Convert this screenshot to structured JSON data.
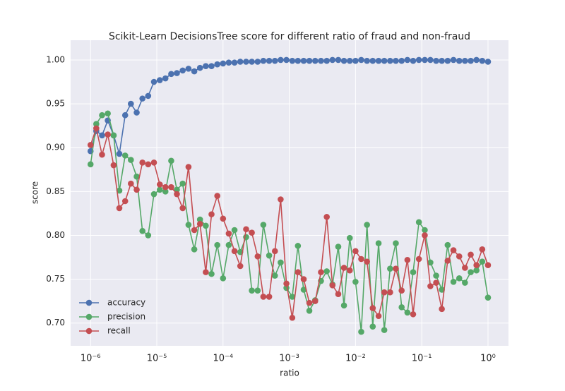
{
  "chart_data": {
    "type": "line",
    "title": "Scikit-Learn DecisionsTree score for different ratio of fraud and non-fraud",
    "x_label": "ratio",
    "y_label": "score",
    "xscale": "log",
    "grid": true,
    "legend": "lower left",
    "x": [
      1e-06,
      1.22e-06,
      1.49e-06,
      1.82e-06,
      2.23e-06,
      2.72e-06,
      3.33e-06,
      4.06e-06,
      4.97e-06,
      6.07e-06,
      7.41e-06,
      9.06e-06,
      1.11e-05,
      1.35e-05,
      1.65e-05,
      2.01e-05,
      2.46e-05,
      3.01e-05,
      3.68e-05,
      4.49e-05,
      5.49e-05,
      6.7e-05,
      8.19e-05,
      0.0001,
      0.000122,
      0.000149,
      0.000182,
      0.000223,
      0.000272,
      0.000333,
      0.000406,
      0.000497,
      0.000607,
      0.000741,
      0.000906,
      0.00111,
      0.00135,
      0.00165,
      0.00201,
      0.00246,
      0.00301,
      0.00368,
      0.00449,
      0.00549,
      0.0067,
      0.00819,
      0.01,
      0.0122,
      0.0149,
      0.0182,
      0.0223,
      0.0272,
      0.0333,
      0.0406,
      0.0497,
      0.0607,
      0.0741,
      0.0906,
      0.111,
      0.135,
      0.165,
      0.201,
      0.246,
      0.301,
      0.368,
      0.449,
      0.549,
      0.67,
      0.819,
      1
    ],
    "series": [
      {
        "name": "accuracy",
        "color": "#4c72b0",
        "values": [
          0.896,
          0.919,
          0.914,
          0.931,
          0.914,
          0.893,
          0.937,
          0.95,
          0.94,
          0.956,
          0.959,
          0.975,
          0.977,
          0.979,
          0.984,
          0.985,
          0.988,
          0.99,
          0.987,
          0.991,
          0.993,
          0.993,
          0.995,
          0.996,
          0.997,
          0.997,
          0.998,
          0.998,
          0.998,
          0.998,
          0.999,
          0.999,
          0.999,
          1.0,
          1.0,
          0.999,
          0.999,
          0.999,
          0.999,
          0.999,
          0.999,
          0.999,
          1.0,
          1.0,
          0.999,
          0.999,
          0.999,
          1.0,
          0.999,
          0.999,
          0.999,
          0.999,
          0.999,
          0.999,
          0.999,
          1.0,
          0.999,
          1.0,
          1.0,
          1.0,
          0.999,
          0.999,
          0.999,
          1.0,
          0.999,
          0.999,
          0.999,
          1.0,
          0.999,
          0.998
        ]
      },
      {
        "name": "precision",
        "color": "#55a868",
        "values": [
          0.881,
          0.927,
          0.937,
          0.939,
          0.914,
          0.851,
          0.891,
          0.886,
          0.867,
          0.805,
          0.8,
          0.847,
          0.852,
          0.85,
          0.885,
          0.852,
          0.859,
          0.812,
          0.784,
          0.818,
          0.811,
          0.756,
          0.789,
          0.751,
          0.789,
          0.806,
          0.781,
          0.798,
          0.737,
          0.737,
          0.812,
          0.777,
          0.754,
          0.769,
          0.74,
          0.73,
          0.788,
          0.738,
          0.714,
          0.726,
          0.748,
          0.759,
          0.744,
          0.787,
          0.72,
          0.797,
          0.747,
          0.69,
          0.812,
          0.696,
          0.791,
          0.692,
          0.762,
          0.791,
          0.718,
          0.712,
          0.758,
          0.815,
          0.806,
          0.769,
          0.754,
          0.738,
          0.789,
          0.747,
          0.751,
          0.746,
          0.758,
          0.76,
          0.77,
          0.729
        ]
      },
      {
        "name": "recall",
        "color": "#c44e52",
        "values": [
          0.903,
          0.922,
          0.892,
          0.915,
          0.88,
          0.831,
          0.839,
          0.859,
          0.852,
          0.883,
          0.881,
          0.883,
          0.858,
          0.855,
          0.855,
          0.847,
          0.831,
          0.878,
          0.806,
          0.813,
          0.758,
          0.824,
          0.845,
          0.819,
          0.802,
          0.782,
          0.765,
          0.807,
          0.803,
          0.776,
          0.73,
          0.73,
          0.782,
          0.841,
          0.745,
          0.706,
          0.758,
          0.75,
          0.723,
          0.725,
          0.758,
          0.821,
          0.743,
          0.733,
          0.763,
          0.76,
          0.782,
          0.773,
          0.77,
          0.717,
          0.708,
          0.735,
          0.735,
          0.762,
          0.737,
          0.772,
          0.71,
          0.773,
          0.8,
          0.742,
          0.746,
          0.716,
          0.771,
          0.783,
          0.776,
          0.763,
          0.778,
          0.766,
          0.784,
          0.766
        ]
      }
    ],
    "xlim": [
      5e-07,
      2.04
    ],
    "xticks": [
      {
        "value": 1e-06,
        "label": "10⁻⁶"
      },
      {
        "value": 1e-05,
        "label": "10⁻⁵"
      },
      {
        "value": 0.0001,
        "label": "10⁻⁴"
      },
      {
        "value": 0.001,
        "label": "10⁻³"
      },
      {
        "value": 0.01,
        "label": "10⁻²"
      },
      {
        "value": 0.1,
        "label": "10⁻¹"
      },
      {
        "value": 1,
        "label": "10⁰"
      }
    ],
    "ylim": [
      0.674,
      1.0225
    ],
    "yticks": [
      {
        "value": 0.7,
        "label": "0.70"
      },
      {
        "value": 0.75,
        "label": "0.75"
      },
      {
        "value": 0.8,
        "label": "0.80"
      },
      {
        "value": 0.85,
        "label": "0.85"
      },
      {
        "value": 0.9,
        "label": "0.90"
      },
      {
        "value": 0.95,
        "label": "0.95"
      },
      {
        "value": 1.0,
        "label": "1.00"
      }
    ]
  }
}
